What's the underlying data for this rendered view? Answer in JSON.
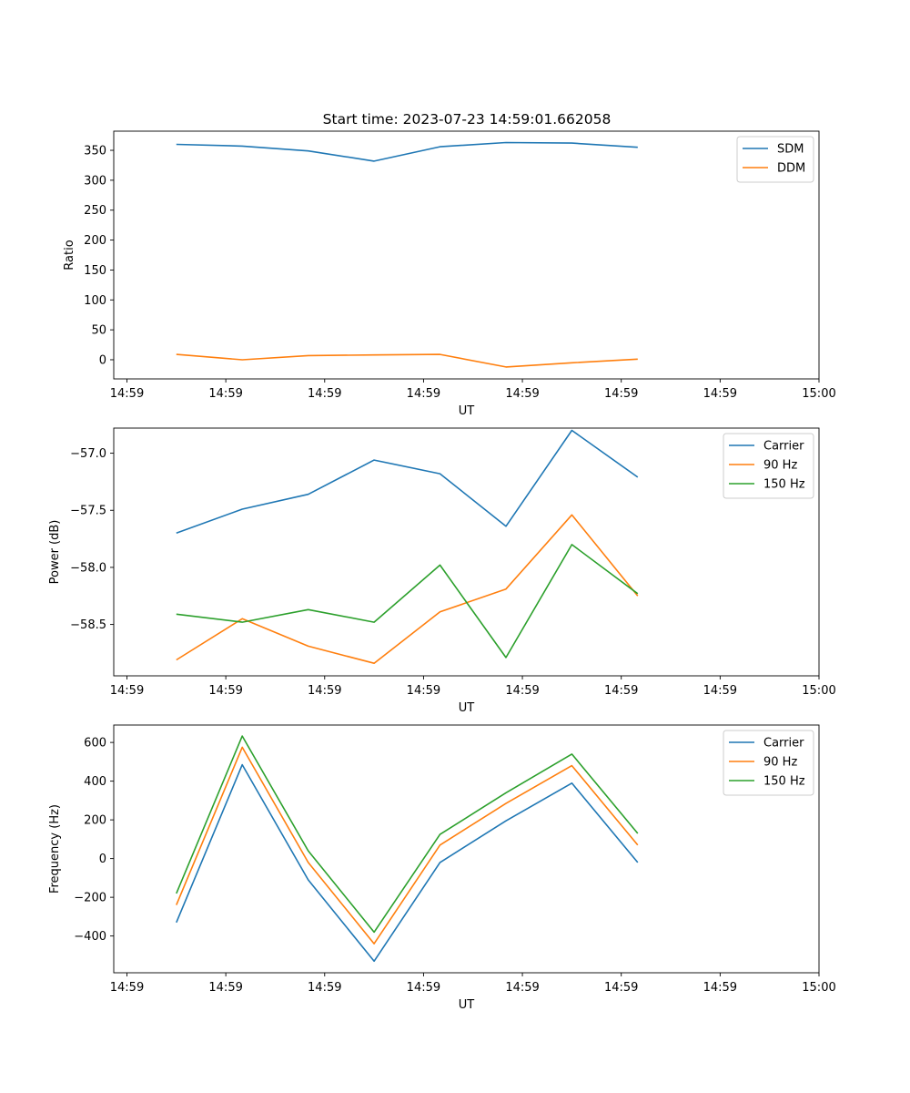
{
  "title": "Start time: 2023-07-23 14:59:01.662058",
  "colors": {
    "blue": "#1f77b4",
    "orange": "#ff7f0e",
    "green": "#2ca02c"
  },
  "chart_data": [
    {
      "type": "line",
      "xlabel": "UT",
      "ylabel": "Ratio",
      "x_ticks": [
        "14:59",
        "14:59",
        "14:59",
        "14:59",
        "14:59",
        "14:59",
        "14:59",
        "15:00"
      ],
      "x_tick_positions": [
        0,
        1.5,
        3,
        4.5,
        6,
        7.5,
        9,
        10.5
      ],
      "xlim": [
        -0.2,
        10.5
      ],
      "x": [
        0.75,
        1.75,
        2.75,
        3.75,
        4.75,
        5.75,
        6.75,
        7.75
      ],
      "ylim": [
        -32,
        382
      ],
      "y_ticks": [
        0,
        50,
        100,
        150,
        200,
        250,
        300,
        350
      ],
      "y_tick_labels": [
        "0",
        "50",
        "100",
        "150",
        "200",
        "250",
        "300",
        "350"
      ],
      "legend": "top-right",
      "series": [
        {
          "name": "SDM",
          "color": "blue",
          "values": [
            360,
            357,
            349,
            332,
            356,
            363,
            362,
            355
          ]
        },
        {
          "name": "DDM",
          "color": "orange",
          "values": [
            9,
            0,
            7,
            8,
            9,
            -12,
            -5,
            1
          ]
        }
      ]
    },
    {
      "type": "line",
      "xlabel": "UT",
      "ylabel": "Power (dB)",
      "x_ticks": [
        "14:59",
        "14:59",
        "14:59",
        "14:59",
        "14:59",
        "14:59",
        "14:59",
        "15:00"
      ],
      "x_tick_positions": [
        0,
        1.5,
        3,
        4.5,
        6,
        7.5,
        9,
        10.5
      ],
      "xlim": [
        -0.2,
        10.5
      ],
      "x": [
        0.75,
        1.75,
        2.75,
        3.75,
        4.75,
        5.75,
        6.75,
        7.75
      ],
      "ylim": [
        -58.95,
        -56.78
      ],
      "y_ticks": [
        -58.5,
        -58.0,
        -57.5,
        -57.0
      ],
      "y_tick_labels": [
        "−58.5",
        "−58.0",
        "−57.5",
        "−57.0"
      ],
      "legend": "top-right",
      "series": [
        {
          "name": "Carrier",
          "color": "blue",
          "values": [
            -57.7,
            -57.49,
            -57.36,
            -57.06,
            -57.18,
            -57.64,
            -56.8,
            -57.21
          ]
        },
        {
          "name": "90 Hz",
          "color": "orange",
          "values": [
            -58.81,
            -58.45,
            -58.69,
            -58.84,
            -58.39,
            -58.19,
            -57.54,
            -58.25
          ]
        },
        {
          "name": "150 Hz",
          "color": "green",
          "values": [
            -58.41,
            -58.48,
            -58.37,
            -58.48,
            -57.98,
            -58.79,
            -57.8,
            -58.23
          ]
        }
      ]
    },
    {
      "type": "line",
      "xlabel": "UT",
      "ylabel": "Frequency (Hz)",
      "x_ticks": [
        "14:59",
        "14:59",
        "14:59",
        "14:59",
        "14:59",
        "14:59",
        "14:59",
        "15:00"
      ],
      "x_tick_positions": [
        0,
        1.5,
        3,
        4.5,
        6,
        7.5,
        9,
        10.5
      ],
      "xlim": [
        -0.2,
        10.5
      ],
      "x": [
        0.75,
        1.75,
        2.75,
        3.75,
        4.75,
        5.75,
        6.75,
        7.75
      ],
      "ylim": [
        -590,
        690
      ],
      "y_ticks": [
        -400,
        -200,
        0,
        200,
        400,
        600
      ],
      "y_tick_labels": [
        "−400",
        "−200",
        "0",
        "200",
        "400",
        "600"
      ],
      "legend": "top-right",
      "series": [
        {
          "name": "Carrier",
          "color": "blue",
          "values": [
            -330,
            485,
            -110,
            -530,
            -20,
            195,
            390,
            -20
          ]
        },
        {
          "name": "90 Hz",
          "color": "orange",
          "values": [
            -240,
            575,
            -20,
            -440,
            70,
            285,
            480,
            70
          ]
        },
        {
          "name": "150 Hz",
          "color": "green",
          "values": [
            -180,
            633,
            40,
            -380,
            125,
            340,
            540,
            130
          ]
        }
      ]
    }
  ]
}
